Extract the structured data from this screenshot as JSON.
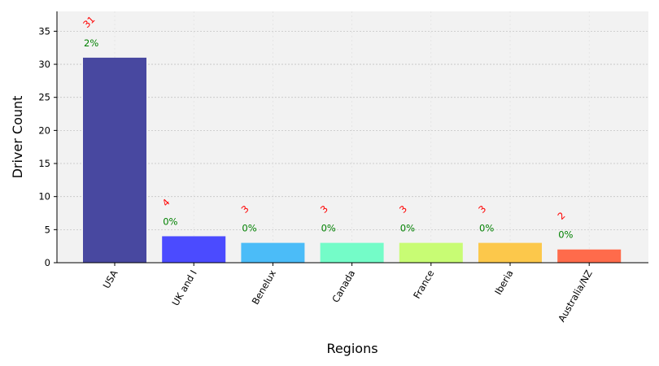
{
  "chart_data": {
    "type": "bar",
    "categories": [
      "USA",
      "UK and I",
      "Benelux",
      "Canada",
      "France",
      "Iberia",
      "Australia/NZ"
    ],
    "values": [
      31,
      4,
      3,
      3,
      3,
      3,
      2
    ],
    "percent_labels": [
      "2%",
      "0%",
      "0%",
      "0%",
      "0%",
      "0%",
      "0%"
    ],
    "bar_colors": [
      "#4848a0",
      "#4b4bff",
      "#4bbcf8",
      "#74fcc8",
      "#c8fc74",
      "#fcc84b",
      "#ff6b4b"
    ],
    "count_label_color": "#ff0000",
    "percent_label_color": "#008000",
    "background": "#f2f2f2",
    "xlabel": "Regions",
    "ylabel": "Driver Count",
    "ylim": [
      0,
      38
    ],
    "yticks": [
      0,
      5,
      10,
      15,
      20,
      25,
      30,
      35
    ],
    "grid": true,
    "legend": "none"
  }
}
